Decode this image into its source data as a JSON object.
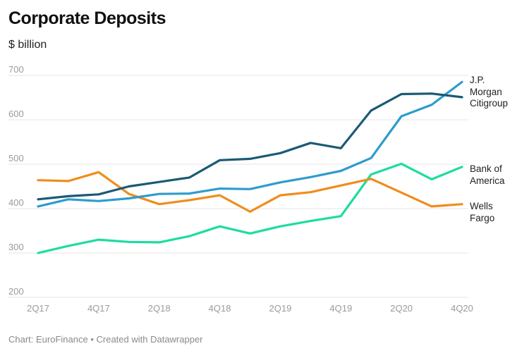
{
  "title": "Corporate Deposits",
  "subtitle": "$ billion",
  "footer": "Chart: EuroFinance • Created with Datawrapper",
  "chart_data": {
    "type": "line",
    "title": "Corporate Deposits",
    "subtitle": "$ billion",
    "ylabel": "$ billion",
    "ylim": [
      200,
      700
    ],
    "yticks": [
      200,
      300,
      400,
      500,
      600,
      700
    ],
    "x": [
      "2Q17",
      "3Q17",
      "4Q17",
      "1Q18",
      "2Q18",
      "3Q18",
      "4Q18",
      "1Q19",
      "2Q19",
      "3Q19",
      "4Q19",
      "1Q20",
      "2Q20",
      "3Q20",
      "4Q20"
    ],
    "xtick_labels": [
      "2Q17",
      "4Q17",
      "2Q18",
      "4Q18",
      "2Q19",
      "4Q19",
      "2Q20",
      "4Q20"
    ],
    "grid": true,
    "legend": "direct labels at right end of lines",
    "series": [
      {
        "name": "J.P. Morgan",
        "color": "#2e9ccc",
        "values": [
          405,
          421,
          417,
          423,
          433,
          434,
          445,
          444,
          459,
          471,
          485,
          514,
          608,
          634,
          685
        ]
      },
      {
        "name": "Citigroup",
        "color": "#1a5a74",
        "values": [
          421,
          428,
          432,
          450,
          460,
          470,
          509,
          512,
          525,
          548,
          536,
          621,
          658,
          659,
          651
        ]
      },
      {
        "name": "Bank of America",
        "color": "#1ddca2",
        "values": [
          300,
          316,
          330,
          325,
          324,
          338,
          360,
          344,
          360,
          372,
          383,
          477,
          501,
          466,
          494
        ]
      },
      {
        "name": "Wells Fargo",
        "color": "#ef8d1c",
        "values": [
          464,
          462,
          482,
          433,
          410,
          419,
          430,
          393,
          430,
          437,
          452,
          467,
          436,
          405,
          410
        ]
      }
    ],
    "end_labels": [
      {
        "series": "J.P. Morgan",
        "lines": [
          "J.P.",
          "Morgan"
        ]
      },
      {
        "series": "Citigroup",
        "lines": [
          "Citigroup"
        ]
      },
      {
        "series": "Bank of America",
        "lines": [
          "Bank of",
          "America"
        ]
      },
      {
        "series": "Wells Fargo",
        "lines": [
          "Wells",
          "Fargo"
        ]
      }
    ]
  }
}
